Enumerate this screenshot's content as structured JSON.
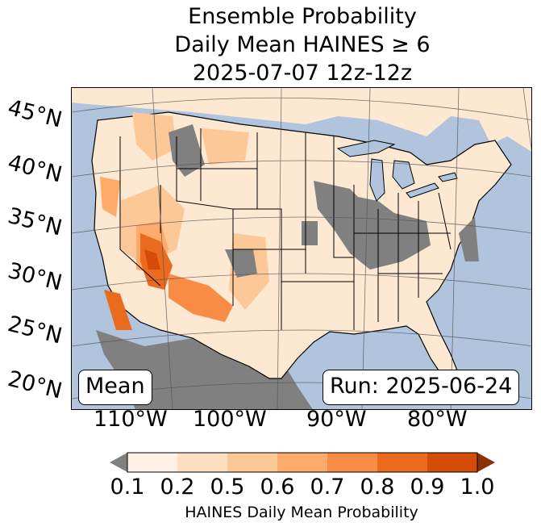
{
  "title": {
    "line1": "Ensemble Probability",
    "line2": "Daily Mean HAINES ≥ 6",
    "line3": "2025-07-07 12z-12z"
  },
  "map": {
    "lat_labels": [
      "45°N",
      "40°N",
      "35°N",
      "30°N",
      "25°N",
      "20°N"
    ],
    "lon_labels": [
      "110°W",
      "100°W",
      "90°W",
      "80°W"
    ],
    "stat_label": "Mean",
    "run_label": "Run: 2025-06-24",
    "colors": {
      "ocean": "#b0c4de",
      "land": "#fde8d2",
      "undefined": "#808080"
    }
  },
  "colorbar": {
    "label": "HAINES Daily Mean Probability",
    "ticks": [
      "0.1",
      "0.2",
      "0.5",
      "0.6",
      "0.7",
      "0.8",
      "0.9",
      "1.0"
    ],
    "colors": [
      "#fef0e2",
      "#fde0c3",
      "#fdc898",
      "#fcab6b",
      "#f88c45",
      "#ea6a1e",
      "#d44c08"
    ],
    "under_color": "#808080",
    "over_color": "#8b2f04"
  },
  "chart_data": {
    "type": "heatmap",
    "title": "Ensemble Probability / Daily Mean HAINES ≥ 6 / 2025-07-07 12z-12z",
    "colorbar_levels": [
      0.1,
      0.2,
      0.5,
      0.6,
      0.7,
      0.8,
      0.9,
      1.0
    ],
    "colorbar_label": "HAINES Daily Mean Probability",
    "lat_ticks": [
      45,
      40,
      35,
      30,
      25,
      20
    ],
    "lon_ticks": [
      -110,
      -100,
      -90,
      -80
    ],
    "extent": "CONUS"
  }
}
